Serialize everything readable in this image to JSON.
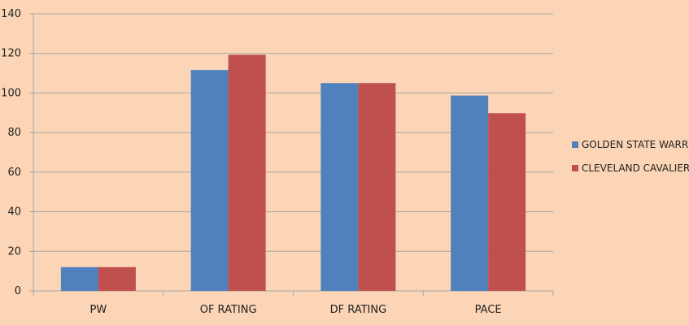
{
  "chart_data": {
    "type": "bar",
    "categories": [
      "PW",
      "OF RATING",
      "DF RATING",
      "PACE"
    ],
    "series": [
      {
        "name": "GOLDEN STATE WARRIORS",
        "values": [
          12,
          111.6,
          105,
          98.7
        ],
        "color": "#4f81bd"
      },
      {
        "name": "CLEVELAND CAVALIERS",
        "values": [
          12,
          119.3,
          105,
          89.8
        ],
        "color": "#c0504d"
      }
    ],
    "title": "",
    "xlabel": "",
    "ylabel": "",
    "ylim": [
      0,
      140
    ],
    "yticks": [
      0,
      20,
      40,
      60,
      80,
      100,
      120,
      140
    ],
    "grid": true,
    "legend_position": "right",
    "background": "#fbd5b5",
    "gridline_color": "#a6a6a6"
  }
}
